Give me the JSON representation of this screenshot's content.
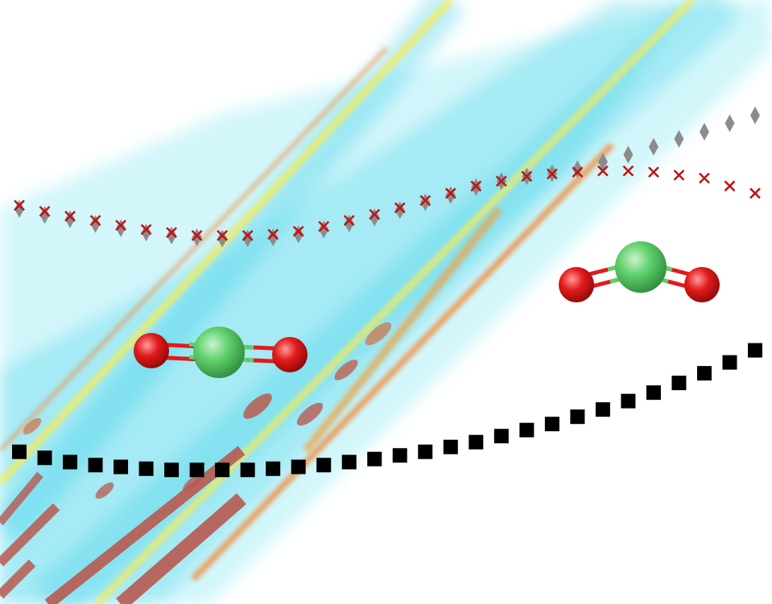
{
  "chart_data": {
    "type": "scatter",
    "background": "heatmap",
    "heatmap_colors": [
      "#ffffff",
      "#4fd8ec",
      "#fff06a",
      "#f08c3c",
      "#b85a50"
    ],
    "x": [
      0,
      1,
      2,
      3,
      4,
      5,
      6,
      7,
      8,
      9,
      10,
      11,
      12,
      13,
      14,
      15,
      16,
      17,
      18,
      19,
      20,
      21,
      22,
      23,
      24,
      25,
      26,
      27,
      28,
      29
    ],
    "ylim": [
      0,
      1
    ],
    "series": [
      {
        "marker": "diamond",
        "color": "#8c8c8c",
        "values": [
          0.654,
          0.644,
          0.637,
          0.629,
          0.622,
          0.615,
          0.61,
          0.607,
          0.605,
          0.605,
          0.607,
          0.612,
          0.62,
          0.63,
          0.64,
          0.652,
          0.665,
          0.677,
          0.69,
          0.7,
          0.708,
          0.713,
          0.72,
          0.732,
          0.744,
          0.757,
          0.77,
          0.782,
          0.796,
          0.809
        ]
      },
      {
        "marker": "x",
        "color": "#c01414",
        "values": [
          0.66,
          0.65,
          0.642,
          0.635,
          0.627,
          0.62,
          0.615,
          0.61,
          0.61,
          0.61,
          0.612,
          0.617,
          0.625,
          0.635,
          0.645,
          0.656,
          0.668,
          0.68,
          0.692,
          0.7,
          0.708,
          0.712,
          0.715,
          0.717,
          0.717,
          0.715,
          0.71,
          0.705,
          0.692,
          0.68
        ]
      },
      {
        "marker": "square",
        "color": "#000000",
        "values": [
          0.252,
          0.242,
          0.235,
          0.23,
          0.227,
          0.224,
          0.222,
          0.222,
          0.222,
          0.222,
          0.224,
          0.227,
          0.23,
          0.235,
          0.24,
          0.246,
          0.252,
          0.26,
          0.268,
          0.278,
          0.288,
          0.298,
          0.31,
          0.322,
          0.336,
          0.35,
          0.366,
          0.382,
          0.4,
          0.42
        ]
      }
    ]
  },
  "molecules": [
    {
      "name": "linear-molecule",
      "center_color": "#5ecf6a",
      "end_color": "#e21a1a",
      "bond_color": "#5ecf6a"
    },
    {
      "name": "bent-molecule",
      "center_color": "#5ecf6a",
      "end_color": "#e21a1a",
      "bond_color": "#5ecf6a"
    }
  ]
}
